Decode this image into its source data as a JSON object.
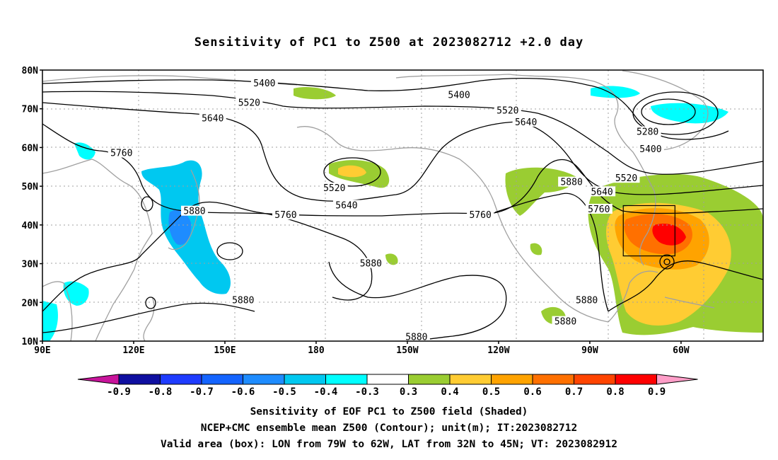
{
  "title": "Sensitivity of PC1 to Z500 at 2023082712 +2.0 day",
  "map": {
    "lat_labels": [
      "80N",
      "70N",
      "60N",
      "50N",
      "40N",
      "30N",
      "20N",
      "10N"
    ],
    "lon_labels": [
      "90E",
      "120E",
      "150E",
      "180",
      "150W",
      "120W",
      "90W",
      "60W"
    ],
    "contours": [
      {
        "label": "5400",
        "lon": 163,
        "lat": 76.5
      },
      {
        "label": "5400",
        "lon": 227,
        "lat": 73.5
      },
      {
        "label": "5520",
        "lon": 158,
        "lat": 71.5
      },
      {
        "label": "5640",
        "lon": 146,
        "lat": 67.5
      },
      {
        "label": "5520",
        "lon": 243,
        "lat": 69.5
      },
      {
        "label": "5640",
        "lon": 249,
        "lat": 66.5
      },
      {
        "label": "5280",
        "lon": 289,
        "lat": 64
      },
      {
        "label": "5400",
        "lon": 290,
        "lat": 59.5
      },
      {
        "label": "5520",
        "lon": 282,
        "lat": 52
      },
      {
        "label": "5640",
        "lon": 274,
        "lat": 48.5
      },
      {
        "label": "5760",
        "lon": 273,
        "lat": 44
      },
      {
        "label": "5760",
        "lon": 116,
        "lat": 58.5
      },
      {
        "label": "5880",
        "lon": 140,
        "lat": 43.5
      },
      {
        "label": "5760",
        "lon": 170,
        "lat": 42.5
      },
      {
        "label": "5640",
        "lon": 190,
        "lat": 45
      },
      {
        "label": "5520",
        "lon": 186,
        "lat": 49.5
      },
      {
        "label": "5760",
        "lon": 234,
        "lat": 42.5
      },
      {
        "label": "5880",
        "lon": 264,
        "lat": 51
      },
      {
        "label": "5880",
        "lon": 198,
        "lat": 30
      },
      {
        "label": "5880",
        "lon": 156,
        "lat": 20.5
      },
      {
        "label": "5880",
        "lon": 213,
        "lat": 11
      },
      {
        "label": "5880",
        "lon": 269,
        "lat": 20.5
      },
      {
        "label": "5880",
        "lon": 262,
        "lat": 15
      }
    ],
    "box": {
      "lon_from": 281,
      "lon_to": 298,
      "lat_from": 32,
      "lat_to": 45
    }
  },
  "colorbar": {
    "labels": [
      "-0.9",
      "-0.8",
      "-0.7",
      "-0.6",
      "-0.5",
      "-0.4",
      "-0.3",
      "0.3",
      "0.4",
      "0.5",
      "0.6",
      "0.7",
      "0.8",
      "0.9"
    ],
    "colors": [
      "#0f0fa0",
      "#1e3cff",
      "#1464ff",
      "#1e8cff",
      "#00c8f0",
      "#00ffff",
      "#ffffff",
      "#9acd32",
      "#ffcc33",
      "#ffa300",
      "#ff7000",
      "#ff4400",
      "#ff0000"
    ],
    "low_end_color": "#c8149b",
    "high_end_color": "#ff9ec8"
  },
  "caption": {
    "line1": "Sensitivity of EOF PC1 to Z500 field (Shaded)",
    "line2": "NCEP+CMC ensemble mean Z500 (Contour); unit(m); IT:2023082712",
    "line3": "Valid area (box): LON from 79W to 62W, LAT from 32N to 45N; VT: 2023082912"
  }
}
